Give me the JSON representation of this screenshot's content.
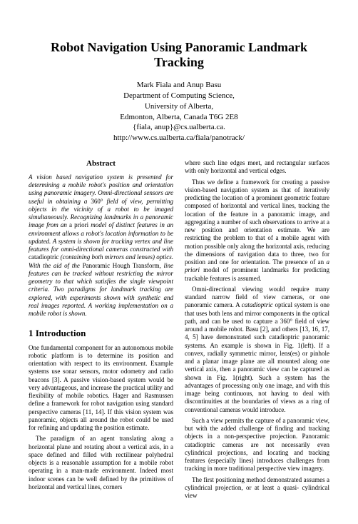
{
  "title": "Robot Navigation Using Panoramic Landmark Tracking",
  "authors_line1": "Mark Fiala and Anup Basu",
  "authors_line2": "Department of Computing Science,",
  "authors_line3": "University of Alberta,",
  "authors_line4": "Edmonton, Alberta, Canada T6G 2E8",
  "authors_line5": "{fiala, anup}@cs.ualberta.ca.",
  "authors_line6": "http://www.cs.ualberta.ca/fiala/panotrack/",
  "abstract_heading": "Abstract",
  "abstract_p1a": "A vision based navigation system is presented for determining a mobile robot's position and orientation using panoramic imagery. Omni-directional sensors are useful in obtaining a ",
  "abstract_p1b": "360°",
  "abstract_p1c": " field of view, permitting objects in the vicinity of a robot to be imaged simultaneously. Recognizing landmarks in a panoramic image from an ",
  "abstract_p1d": "a priori",
  "abstract_p1e": " model of distinct features in an environment allows a robot's location information to be updated. A system is shown for tracking vertex and line features for omni-directional cameras constructed with ",
  "abstract_p1f": "catadioptric",
  "abstract_p1g": " (containing both mirrors and lenses) optics. With the aid of the ",
  "abstract_p1h": "Panoramic Hough Transform",
  "abstract_p1i": ", line features can be tracked without restricting the mirror geometry to that which satisfies the single viewpoint criteria. Two paradigms for landmark tracking are explored, with experiments shown with synthetic and real images reported. A working implementation on a mobile robot is shown.",
  "section1_heading": "1   Introduction",
  "intro_p1": "One fundamental component for an autonomous mobile robotic platform is to determine its position and orientation with respect to its environment. Example systems use sonar sensors, motor odometry and radio beacons [3]. A passive vision-based system would be very advantageous, and increase the practical utility and flexibility of mobile robotics. Hager and Rasmussen define a framework for robot navigation using standard perspective cameras [11, 14]. If this vision system was panoramic, objects all around the robot could be used for refining and updating the position estimate.",
  "intro_p2": "The paradigm of an agent translating along a horizontal plane and rotating about a vertical axis, in a space defined and filled with rectilinear polyhedral objects is a reasonable assumption for a mobile robot operating in a man-made environment. Indeed most indoor scenes can be well defined by the primitives of horizontal and vertical lines, corners",
  "right_p1": "where such line edges meet, and rectangular surfaces with only horizontal and vertical edges.",
  "right_p2a": "Thus we define a framework for creating a passive vision-based navigation system as that of iteratively predicting the location of a prominent geometric feature composed of horizontal and vertical lines, tracking the location of the feature in a panoramic image, and aggregating a number of such observations to arrive at a new position and orientation estimate. We are restricting the problem to that of a mobile agent with motion possible only along the horizontal axis, reducing the dimensions of navigation data to three, two for position and one for orientation. The presence of an ",
  "right_p2b": "a priori",
  "right_p2c": " model of prominent landmarks for predicting trackable features is assumed.",
  "right_p3a": "Omni-directional viewing would require many standard narrow field of view cameras, or one panoramic camera. A ",
  "right_p3b": "catadioptric",
  "right_p3c": " optical system is one that uses both lens and mirror components in the optical path, and can be used to capture a 360° field of view around a mobile robot. Basu [2], and others [13, 16, 17, 4, 5] have demonstrated such catadioptric panoramic systems. An example is shown in Fig. 1(left). If a convex, radially symmetric mirror, lens(es) or pinhole and a planar image plane are all mounted along one vertical axis, then a panoramic view can be captured as shown in Fig. 1(right). Such a system has the advantages of processing only one image, and with this image being continuous, not having to deal with discontinuities at the boundaries of views as a ring of conventional cameras would introduce.",
  "right_p4": "Such a view permits the capture of a panoramic view, but with the added challenge of finding and tracking objects in a non-perspective projection. Panoramic catadioptric cameras are not necessarily even cylindrical projections, and locating and tracking features (especially lines) introduces challenges from tracking in more traditional perspective view imagery.",
  "right_p5": "The first positioning method demonstrated assumes a cylindrical projection, or at least a quasi- cylindrical view"
}
